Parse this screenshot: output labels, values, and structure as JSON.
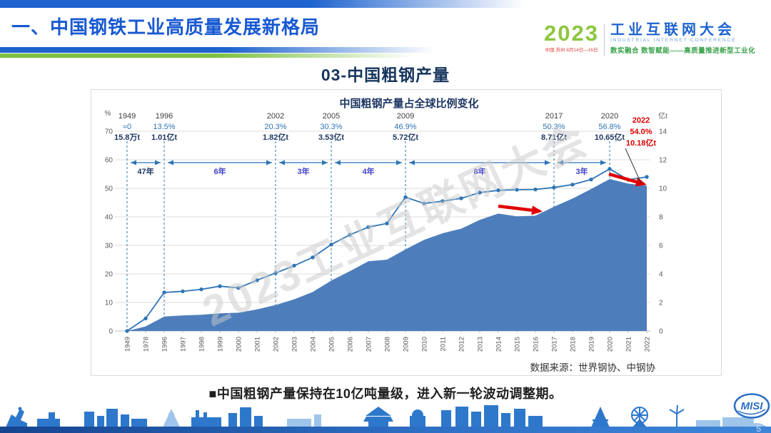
{
  "slide": {
    "header": {
      "title": "一、中国钢铁工业高质量发展新格局"
    },
    "logo": {
      "year": "2023",
      "venue": "中国·苏州 8月14日—16日",
      "event_cn": "工业互联网大会",
      "event_en": "INDUSTRIAL INTERNET CONFERENCE",
      "tagline": "数实融合 数智赋能——高质量推进新型工业化"
    },
    "section_title": "03-中国粗钢产量",
    "bullet": "■中国粗钢产量保持在10亿吨量级，进入新一轮波动调整期。",
    "watermark": "2023工业互联网大会",
    "page_number": "5",
    "footer_logo": "MISI",
    "colors": {
      "accent_blue": "#1E63CF",
      "accent_green": "#7CC142",
      "title_navy": "#17365D"
    }
  },
  "chart_data": {
    "type": "line+area",
    "title": "中国粗钢产量占全球比例变化",
    "source": "数据来源：世界钢协、中钢协",
    "left_axis": {
      "label": "%",
      "min": 0,
      "max": 70,
      "step": 10
    },
    "right_axis": {
      "label": "亿t",
      "min": 0,
      "max": 14,
      "step": 2
    },
    "grid": true,
    "categories": [
      "1949",
      "1978",
      "1996",
      "1997",
      "1998",
      "1999",
      "2000",
      "2001",
      "2002",
      "2003",
      "2004",
      "2005",
      "2006",
      "2007",
      "2008",
      "2009",
      "2010",
      "2011",
      "2012",
      "2013",
      "2014",
      "2015",
      "2016",
      "2017",
      "2018",
      "2019",
      "2020",
      "2021",
      "2022"
    ],
    "series": [
      {
        "name": "中国粗钢产量占全球比例(%)",
        "type": "line",
        "axis": "left",
        "values": [
          0,
          4.4,
          13.5,
          13.9,
          14.6,
          15.7,
          15.1,
          17.8,
          20.3,
          22.9,
          25.8,
          30.3,
          33.7,
          36.4,
          37.7,
          46.9,
          44.7,
          45.5,
          46.5,
          48.5,
          49.3,
          49.5,
          49.6,
          50.3,
          51.3,
          53.1,
          56.8,
          53.0,
          54.0
        ]
      },
      {
        "name": "中国粗钢产量(亿t)",
        "type": "area",
        "axis": "right",
        "values": [
          0.002,
          0.32,
          1.01,
          1.09,
          1.14,
          1.24,
          1.28,
          1.51,
          1.82,
          2.22,
          2.73,
          3.53,
          4.19,
          4.89,
          5.0,
          5.72,
          6.39,
          6.85,
          7.17,
          7.79,
          8.23,
          8.04,
          8.08,
          8.71,
          9.28,
          9.95,
          10.65,
          10.33,
          10.18
        ]
      }
    ],
    "milestones": [
      {
        "year": "1949",
        "share": "≈0",
        "amount": "15.8万t",
        "highlight": false
      },
      {
        "year": "1996",
        "share": "13.5%",
        "amount": "1.01亿t",
        "highlight": false
      },
      {
        "year": "2002",
        "share": "20.3%",
        "amount": "1.82亿t",
        "highlight": false
      },
      {
        "year": "2005",
        "share": "30.3%",
        "amount": "3.53亿t",
        "highlight": false
      },
      {
        "year": "2009",
        "share": "46.9%",
        "amount": "5.72亿t",
        "highlight": false
      },
      {
        "year": "2017",
        "share": "50.3%",
        "amount": "8.71亿t",
        "highlight": false
      },
      {
        "year": "2020",
        "share": "56.8%",
        "amount": "10.65亿t",
        "highlight": false
      },
      {
        "year": "2022",
        "share": "54.0%",
        "amount": "10.18亿t",
        "highlight": true
      }
    ],
    "intervals": [
      {
        "from": "1949",
        "to": "1996",
        "label": "47年"
      },
      {
        "from": "1996",
        "to": "2002",
        "label": "6年"
      },
      {
        "from": "2002",
        "to": "2005",
        "label": "3年"
      },
      {
        "from": "2005",
        "to": "2009",
        "label": "4年"
      },
      {
        "from": "2009",
        "to": "2017",
        "label": "8年"
      },
      {
        "from": "2017",
        "to": "2020",
        "label": "3年"
      }
    ],
    "annotations": {
      "red_arrows": [
        {
          "x1": 570,
          "y1": 163,
          "x2": 628,
          "y2": 170
        },
        {
          "x1": 725,
          "y1": 118,
          "x2": 774,
          "y2": 132
        }
      ],
      "callout": {
        "x1": 748,
        "y1": 82,
        "x2": 770,
        "y2": 131
      }
    },
    "legend": {
      "visible": false
    },
    "colors": {
      "line": "#2E75B6",
      "area": "#4D7EBB",
      "grid": "#DEDEDE",
      "axis": "#BFBFBF",
      "axis_text": "#595959",
      "dashed": "#2E75B6",
      "milestone_year": "#404040",
      "milestone_share": "#2E75B6",
      "milestone_amount": "#1F3864",
      "highlight_red": "#E00000",
      "interval_label": "#4343C9",
      "interval_first_label": "#1F3864",
      "watermark_gray": "#CBCBCB",
      "title_navy": "#1F3864"
    }
  }
}
